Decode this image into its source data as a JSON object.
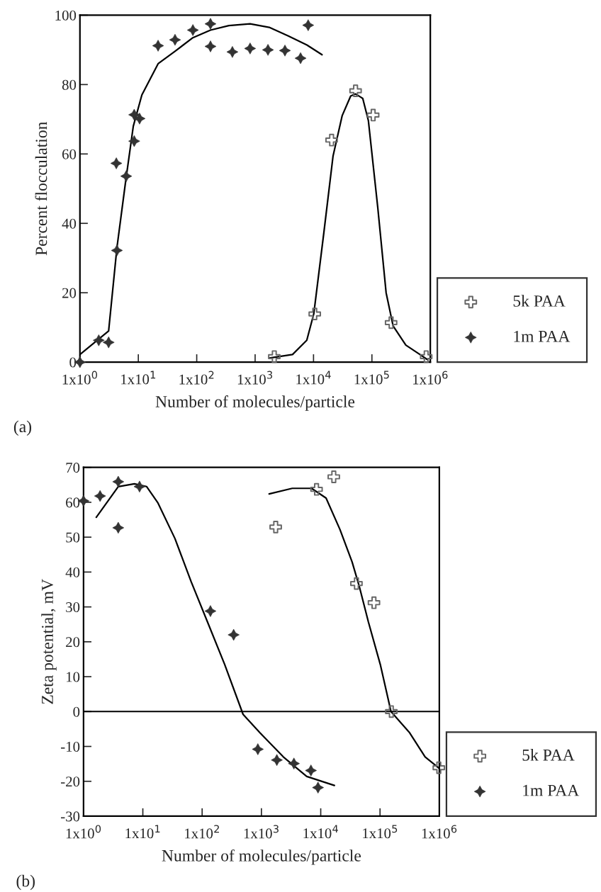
{
  "chart_data": [
    {
      "type": "scatter",
      "xlabel": "Number of molecules/particle",
      "ylabel": "Percent flocculation",
      "annotations": [
        "(a)"
      ],
      "log": "x",
      "xlim": [
        1,
        1000000
      ],
      "ylim": [
        0,
        100
      ],
      "xticks": [
        {
          "value": 1,
          "label": "1x10$^{0}$"
        },
        {
          "value": 10,
          "label": "1x10$^{1}$"
        },
        {
          "value": 100,
          "label": "1x10$^{2}$"
        },
        {
          "value": 1000,
          "label": "1x10$^{3}$"
        },
        {
          "value": 10000,
          "label": "1x10$^{4}$"
        },
        {
          "value": 100000,
          "label": "1x10$^{5}$"
        },
        {
          "value": 1000000,
          "label": "1x10$^{6}$"
        }
      ],
      "yticks": [
        0,
        20,
        40,
        60,
        80,
        100
      ],
      "grid": false,
      "legend": "right",
      "series": [
        {
          "name": "5k PAA",
          "marker": "cross",
          "color": "#666666",
          "x": [
            2130,
            10500,
            20400,
            52500,
            105000,
            213000,
            850000
          ],
          "values": [
            1.6,
            13.9,
            64,
            78.2,
            71.2,
            11.4,
            1.6
          ]
        },
        {
          "name": "1m PAA",
          "marker": "star",
          "color": "#333333",
          "x": [
            1,
            2.1,
            3.1,
            4.3,
            4.2,
            6.2,
            8.5,
            8.5,
            10.5,
            21.8,
            42.5,
            86,
            172,
            172,
            408,
            820,
            1660,
            3240,
            6000,
            8100
          ],
          "values": [
            0,
            6.3,
            5.7,
            32.2,
            57.3,
            53.6,
            63.7,
            71.3,
            70.2,
            91.2,
            92.9,
            95.7,
            97.5,
            91,
            89.4,
            90.4,
            90,
            89.8,
            87.6,
            97.1
          ]
        },
        {
          "type": "line",
          "color": "#000000",
          "x": [
            1,
            3.1,
            4.3,
            6.05,
            8.2,
            11.5,
            21.8,
            42.5,
            86,
            172,
            355,
            820,
            1740,
            3700,
            7700,
            14000
          ],
          "values": [
            2.2,
            9,
            33,
            52,
            68,
            77,
            86,
            89.6,
            93.5,
            95.7,
            97,
            97.5,
            96.5,
            94,
            91.4,
            88.6
          ]
        },
        {
          "type": "line",
          "color": "#000000",
          "x": [
            1740,
            4370,
            7670,
            10100,
            15100,
            21600,
            30900,
            43300,
            52500,
            69700,
            87000,
            126000,
            175000,
            231000,
            381000,
            665000,
            881000
          ],
          "values": [
            1.2,
            2.2,
            6.3,
            13.9,
            37.6,
            59.4,
            71,
            76.7,
            77.3,
            76,
            69.6,
            44.5,
            20,
            10.4,
            4.9,
            2.2,
            0.8
          ]
        }
      ]
    },
    {
      "type": "scatter",
      "xlabel": "Number of molecules/particle",
      "ylabel": "Zeta potential, mV",
      "annotations": [
        "(b)"
      ],
      "log": "x",
      "xlim": [
        1,
        1000000
      ],
      "ylim": [
        -30,
        70
      ],
      "xticks": [
        {
          "value": 1,
          "label": "1x10$^{0}$"
        },
        {
          "value": 10,
          "label": "1x10$^{1}$"
        },
        {
          "value": 100,
          "label": "1x10$^{2}$"
        },
        {
          "value": 1000,
          "label": "1x10$^{3}$"
        },
        {
          "value": 10000,
          "label": "1x10$^{4}$"
        },
        {
          "value": 100000,
          "label": "1x10$^{5}$"
        },
        {
          "value": 1000000,
          "label": "1x10$^{6}$"
        }
      ],
      "yticks": [
        -30,
        -20,
        -10,
        0,
        10,
        20,
        30,
        40,
        50,
        60,
        70
      ],
      "grid": false,
      "legend": "right",
      "ref_lines": [
        {
          "axis": "y",
          "value": 0,
          "color": "#000000"
        }
      ],
      "series": [
        {
          "name": "5k PAA",
          "marker": "cross",
          "color": "#666666",
          "x": [
            1740,
            8500,
            16600,
            40000,
            79000,
            155000,
            980000
          ],
          "values": [
            52.9,
            63.7,
            67.3,
            36.7,
            31.2,
            0,
            -16.1
          ]
        },
        {
          "name": "1m PAA",
          "marker": "star",
          "color": "#333333",
          "x": [
            1,
            1.9,
            3.85,
            3.85,
            8.8,
            138,
            340,
            870,
            1820,
            3530,
            6840,
            9000
          ],
          "values": [
            60.4,
            61.8,
            65.9,
            52.7,
            64.5,
            28.8,
            22,
            -10.8,
            -13.9,
            -14.9,
            -16.9,
            -21.8
          ]
        },
        {
          "type": "line",
          "color": "#000000",
          "x": [
            1.64,
            3.85,
            7.2,
            11.6,
            18,
            34.8,
            65,
            123,
            240,
            490,
            944,
            2340,
            5800,
            17000
          ],
          "values": [
            55.7,
            64.5,
            65.3,
            64.5,
            59.8,
            49.6,
            37.3,
            25.7,
            13.5,
            -0.8,
            -6.1,
            -13,
            -18.6,
            -21.2
          ]
        },
        {
          "type": "line",
          "color": "#000000",
          "x": [
            1350,
            3310,
            7000,
            12300,
            21100,
            33800,
            44500,
            63600,
            101000,
            153000,
            316000,
            576000,
            1000000
          ],
          "values": [
            62.4,
            64,
            64,
            61.2,
            52.2,
            42.9,
            36,
            25.7,
            13.5,
            0,
            -6.1,
            -13,
            -16.3
          ]
        }
      ]
    }
  ]
}
